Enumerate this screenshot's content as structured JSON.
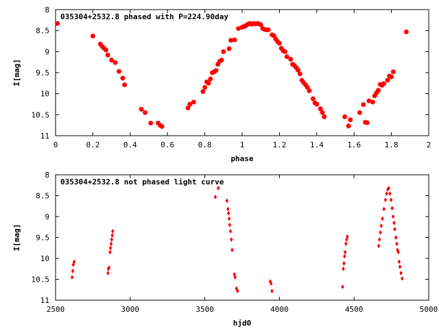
{
  "chart_data": [
    {
      "type": "scatter",
      "title": "035304+2532.8 phased with P=224.90day",
      "xlabel": "phase",
      "ylabel": "I[mag]",
      "xlim": [
        0,
        2
      ],
      "ylim": [
        8,
        11
      ],
      "y_inverted": true,
      "grid": false,
      "x_ticks": [
        0,
        0.2,
        0.4,
        0.6,
        0.8,
        1,
        1.2,
        1.4,
        1.6,
        1.8,
        2
      ],
      "x_tick_labels": [
        "0",
        "0.2",
        "0.4",
        "0.6",
        "0.8",
        "1",
        "1.2",
        "1.4",
        "1.6",
        "1.8",
        "2"
      ],
      "y_ticks": [
        8,
        8.5,
        9,
        9.5,
        10,
        10.5,
        11
      ],
      "y_tick_labels": [
        "8",
        "8.5",
        "9",
        "9.5",
        "10",
        "10.5",
        "11"
      ],
      "series": [
        {
          "color": "#ff0000",
          "marker": "plus",
          "x": [
            0.01,
            0.2,
            0.24,
            0.25,
            0.26,
            0.27,
            0.28,
            0.3,
            0.32,
            0.34,
            0.36,
            0.37,
            0.46,
            0.48,
            0.51,
            0.55,
            0.56,
            0.57,
            0.71,
            0.72,
            0.74,
            0.79,
            0.8,
            0.81,
            0.82,
            0.83,
            0.84,
            0.85,
            0.86,
            0.87,
            0.88,
            0.89,
            0.9,
            0.93,
            0.94,
            0.96,
            0.98,
            1.0,
            1.01,
            1.02,
            1.03,
            1.04,
            1.05,
            1.06,
            1.07,
            1.08,
            1.09,
            1.1,
            1.11,
            1.12,
            1.13,
            1.14,
            1.16,
            1.17,
            1.18,
            1.19,
            1.2,
            1.21,
            1.22,
            1.23,
            1.24,
            1.26,
            1.27,
            1.28,
            1.29,
            1.3,
            1.31,
            1.32,
            1.33,
            1.34,
            1.35,
            1.36,
            1.38,
            1.39,
            1.4,
            1.42,
            1.43,
            1.44,
            1.55,
            1.57,
            1.58,
            1.63,
            1.65,
            1.66,
            1.67,
            1.68,
            1.7,
            1.71,
            1.72,
            1.73,
            1.74,
            1.75,
            1.76,
            1.78,
            1.79,
            1.8,
            1.81,
            1.88
          ],
          "y": [
            8.33,
            8.63,
            8.82,
            8.88,
            8.92,
            8.96,
            9.08,
            9.2,
            9.26,
            9.47,
            9.63,
            9.79,
            10.37,
            10.45,
            10.7,
            10.7,
            10.75,
            10.78,
            10.34,
            10.25,
            10.2,
            9.95,
            9.85,
            9.72,
            9.75,
            9.65,
            9.5,
            9.48,
            9.45,
            9.3,
            9.23,
            9.2,
            9.0,
            8.93,
            8.73,
            8.72,
            8.45,
            8.42,
            8.4,
            8.38,
            8.35,
            8.33,
            8.35,
            8.33,
            8.34,
            8.33,
            8.34,
            8.36,
            8.45,
            8.47,
            8.48,
            8.48,
            8.6,
            8.62,
            8.7,
            8.76,
            8.8,
            8.92,
            8.98,
            9.0,
            9.12,
            9.18,
            9.3,
            9.33,
            9.38,
            9.44,
            9.53,
            9.68,
            9.74,
            9.79,
            9.85,
            9.93,
            10.12,
            10.22,
            10.25,
            10.36,
            10.45,
            10.55,
            10.55,
            10.77,
            10.62,
            10.45,
            10.26,
            10.68,
            10.69,
            10.17,
            10.2,
            10.05,
            9.98,
            9.92,
            9.78,
            9.8,
            9.76,
            9.68,
            9.58,
            9.6,
            9.48,
            8.53
          ]
        }
      ]
    },
    {
      "type": "scatter",
      "title": "035304+2532.8 not phased light curve",
      "xlabel": "hjd0",
      "ylabel": "I[mag]",
      "xlim": [
        2500,
        5000
      ],
      "ylim": [
        8,
        11
      ],
      "y_inverted": true,
      "grid": false,
      "x_ticks": [
        2500,
        3000,
        3500,
        4000,
        4500,
        5000
      ],
      "x_tick_labels": [
        "2500",
        "3000",
        "3500",
        "4000",
        "4500",
        "5000"
      ],
      "y_ticks": [
        8,
        8.5,
        9,
        9.5,
        10,
        10.5,
        11
      ],
      "y_tick_labels": [
        "8",
        "8.5",
        "9",
        "9.5",
        "10",
        "10.5",
        "11"
      ],
      "series": [
        {
          "color": "#ff0000",
          "marker": "diamond",
          "x": [
            2611,
            2615,
            2619,
            2625,
            2851,
            2854,
            2858,
            2865,
            2868,
            2872,
            2876,
            2880,
            2883,
            3570,
            3590,
            3648,
            3655,
            3659,
            3663,
            3667,
            3672,
            3678,
            3683,
            3698,
            3703,
            3712,
            3720,
            3938,
            3944,
            3950,
            4423,
            4428,
            4432,
            4436,
            4440,
            4445,
            4450,
            4455,
            4665,
            4670,
            4676,
            4682,
            4690,
            4700,
            4710,
            4718,
            4726,
            4732,
            4740,
            4748,
            4755,
            4762,
            4768,
            4773,
            4780,
            4786,
            4791,
            4796,
            4802,
            4807,
            4814,
            4822
          ],
          "y": [
            10.45,
            10.3,
            10.15,
            10.08,
            10.35,
            10.25,
            10.22,
            9.85,
            9.75,
            9.65,
            9.55,
            9.45,
            9.35,
            8.53,
            8.32,
            8.62,
            8.82,
            8.92,
            9.05,
            9.2,
            9.35,
            9.55,
            9.8,
            10.38,
            10.45,
            10.72,
            10.78,
            10.55,
            10.6,
            10.78,
            10.68,
            10.25,
            10.12,
            9.95,
            9.85,
            9.65,
            9.55,
            9.48,
            9.7,
            9.55,
            9.38,
            9.22,
            9.05,
            8.82,
            8.6,
            8.45,
            8.35,
            8.32,
            8.45,
            8.6,
            8.8,
            9.0,
            9.15,
            9.3,
            9.5,
            9.65,
            9.8,
            9.85,
            10.08,
            10.2,
            10.35,
            10.48
          ]
        }
      ]
    }
  ]
}
